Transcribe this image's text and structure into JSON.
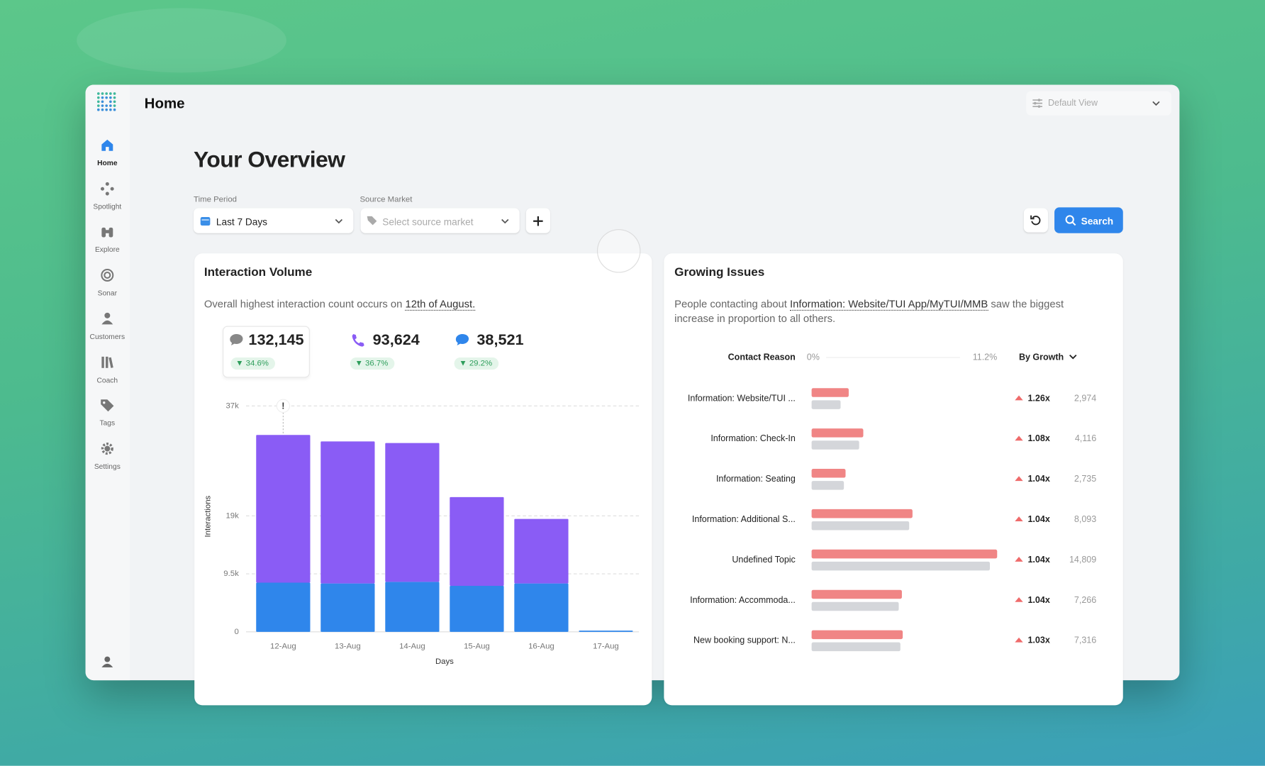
{
  "header": {
    "title": "Home",
    "view": "Default View"
  },
  "sidebar": {
    "items": [
      "Home",
      "Spotlight",
      "Explore",
      "Sonar",
      "Customers",
      "Coach",
      "Tags",
      "Settings"
    ]
  },
  "overview": {
    "title": "Your Overview",
    "time_period": {
      "label": "Time Period",
      "value": "Last 7 Days"
    },
    "source_market": {
      "label": "Source Market",
      "placeholder": "Select source market"
    },
    "search": "Search"
  },
  "interaction_volume": {
    "summary": {
      "before": "Overall highest interaction count occurs on",
      "link": "12th of August."
    },
    "kpis": [
      {
        "value": "132,145",
        "change": "34.6%"
      },
      {
        "value": "93,624",
        "change": "36.7%"
      },
      {
        "value": "38,521",
        "change": "29.2%"
      }
    ]
  },
  "growing_issues": {
    "summary": {
      "before": "People contacting about",
      "link": "Information: Website/TUI App/MyTUI/MMB",
      "after": "saw the biggest increase in proportion to all others."
    }
  },
  "chart_data": [
    {
      "type": "bar",
      "stacked": true,
      "title": "Interaction Volume",
      "x_label": "Days",
      "y_label": "Interactions",
      "categories": [
        "12-Aug",
        "13-Aug",
        "14-Aug",
        "15-Aug",
        "16-Aug",
        "17-Aug"
      ],
      "series": [
        {
          "color": "#2f86eb",
          "values": [
            8060,
            7930,
            8190,
            7530,
            7930,
            200
          ]
        },
        {
          "color": "#8a5cf5",
          "values": [
            24180,
            23255,
            22730,
            14540,
            10570,
            0
          ]
        }
      ],
      "ylim": [
        0,
        37000
      ],
      "yticks": [
        0,
        {
          "value": 9500,
          "label": "9.5k"
        },
        {
          "value": 19000,
          "label": "19k"
        },
        {
          "value": 37000,
          "label": "37k"
        }
      ],
      "grid": true,
      "annotation": "!"
    },
    {
      "type": "hbar",
      "title": "Growing Issues",
      "category_header": "Contact Reason",
      "sort": "By Growth",
      "categories": [
        "Information: Website/TUI ...",
        "Information: Check-In",
        "Information: Seating",
        "Information: Additional S...",
        "Undefined Topic",
        "Information: Accommoda...",
        "New booking support: N..."
      ],
      "series": [
        {
          "color": "#f08585",
          "values": [
            2.24,
            3.12,
            2.05,
            6.09,
            11.2,
            5.45,
            5.5
          ]
        },
        {
          "color": "#d4d6da",
          "values": [
            1.75,
            2.87,
            1.95,
            5.89,
            10.76,
            5.26,
            5.36
          ]
        }
      ],
      "xlim": [
        0,
        11.2
      ],
      "xticks": [
        {
          "value": 0,
          "label": "0%"
        },
        {
          "value": 11.2,
          "label": "11.2%"
        }
      ],
      "growth": [
        "1.26x",
        "1.08x",
        "1.04x",
        "1.04x",
        "1.04x",
        "1.04x",
        "1.03x"
      ],
      "counts": [
        "2,974",
        "4,116",
        "2,735",
        "8,093",
        "14,809",
        "7,266",
        "7,316"
      ]
    }
  ]
}
